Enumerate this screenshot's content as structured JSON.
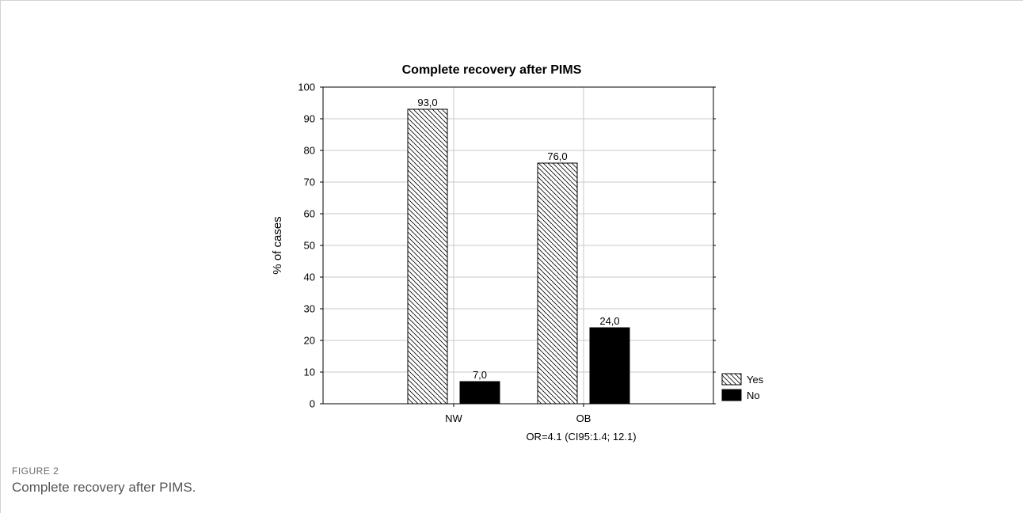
{
  "figure": {
    "label": "FIGURE 2",
    "caption": "Complete recovery after PIMS."
  },
  "colors": {
    "yes_fill": "#ffffff",
    "no_fill": "#000000",
    "grid": "#c8c8c8",
    "axis": "#000000"
  },
  "chart_data": {
    "type": "bar",
    "title": "Complete recovery after PIMS",
    "ylabel": "% of cases",
    "xlabel": "",
    "categories": [
      "NW",
      "OB"
    ],
    "series": [
      {
        "name": "Yes",
        "values": [
          93.0,
          76.0
        ],
        "labels": [
          "93,0",
          "76,0"
        ],
        "pattern": "hatched"
      },
      {
        "name": "No",
        "values": [
          7.0,
          24.0
        ],
        "labels": [
          "7,0",
          "24,0"
        ],
        "pattern": "solid-black"
      }
    ],
    "ylim": [
      0,
      100
    ],
    "yticks": [
      0,
      10,
      20,
      30,
      40,
      50,
      60,
      70,
      80,
      90,
      100
    ],
    "grid": true,
    "legend": "bottom-right",
    "annotation": "OR=4.1 (CI95:1.4; 12.1)"
  }
}
